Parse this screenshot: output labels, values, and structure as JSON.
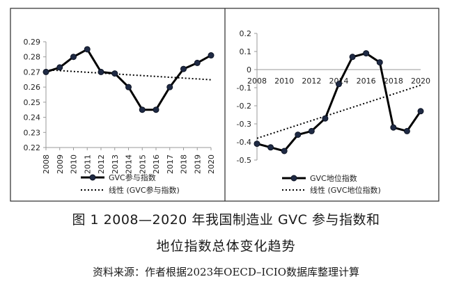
{
  "caption": {
    "line1": "图 1   2008—2020 年我国制造业 GVC 参与指数和",
    "line2": "地位指数总体变化趋势",
    "source": "资料来源：作者根据2023年OECD–ICIO数据库整理计算"
  },
  "chart_data": [
    {
      "type": "line",
      "x": [
        2008,
        2009,
        2010,
        2011,
        2012,
        2013,
        2014,
        2015,
        2016,
        2017,
        2018,
        2019,
        2020
      ],
      "series": [
        {
          "name": "GVC参与指数",
          "values": [
            0.27,
            0.273,
            0.28,
            0.285,
            0.27,
            0.269,
            0.26,
            0.245,
            0.245,
            0.26,
            0.272,
            0.276,
            0.281
          ],
          "color": "#000000",
          "style": "solid-markers"
        },
        {
          "name": "线性 (GVC参与指数)",
          "trend_of": 0,
          "color": "#000000",
          "style": "dotted"
        }
      ],
      "ylim": [
        0.22,
        0.29
      ],
      "yticks": [
        0.22,
        0.23,
        0.24,
        0.25,
        0.26,
        0.27,
        0.28,
        0.29
      ],
      "ytick_labels": [
        "0.22",
        "0.23",
        "0.24",
        "0.25",
        "0.26",
        "0.27",
        "0.28",
        "0.29"
      ],
      "xtick_labels": [
        "2008",
        "2009",
        "2010",
        "2011",
        "2012",
        "2013",
        "2014",
        "2015",
        "2016",
        "2017",
        "2018",
        "2019",
        "2020"
      ],
      "grid": false,
      "legend": "bottom",
      "title": "",
      "xlabel": "",
      "ylabel": ""
    },
    {
      "type": "line",
      "x": [
        2008,
        2009,
        2010,
        2011,
        2012,
        2013,
        2014,
        2015,
        2016,
        2017,
        2018,
        2019,
        2020
      ],
      "series": [
        {
          "name": "GVC地位指数",
          "values": [
            -0.41,
            -0.43,
            -0.45,
            -0.36,
            -0.34,
            -0.27,
            -0.08,
            0.07,
            0.09,
            0.04,
            -0.32,
            -0.34,
            -0.23
          ],
          "color": "#000000",
          "style": "solid-markers"
        },
        {
          "name": "线性 (GVC地位指数)",
          "trend_of": 0,
          "color": "#000000",
          "style": "dotted"
        }
      ],
      "ylim": [
        -0.5,
        0.2
      ],
      "yticks": [
        -0.5,
        -0.4,
        -0.3,
        -0.2,
        -0.1,
        0,
        0.1,
        0.2
      ],
      "ytick_labels": [
        "-0.5",
        "-0.4",
        "-0.3",
        "-0.2",
        "-0.1",
        "0",
        "0.1",
        "0.2"
      ],
      "xtick_labels": [
        "2008",
        "2010",
        "2012",
        "2014",
        "2016",
        "2018",
        "2020"
      ],
      "xtick_values": [
        2008,
        2010,
        2012,
        2014,
        2016,
        2018,
        2020
      ],
      "grid": false,
      "legend": "bottom",
      "title": "",
      "xlabel": "",
      "ylabel": ""
    }
  ]
}
